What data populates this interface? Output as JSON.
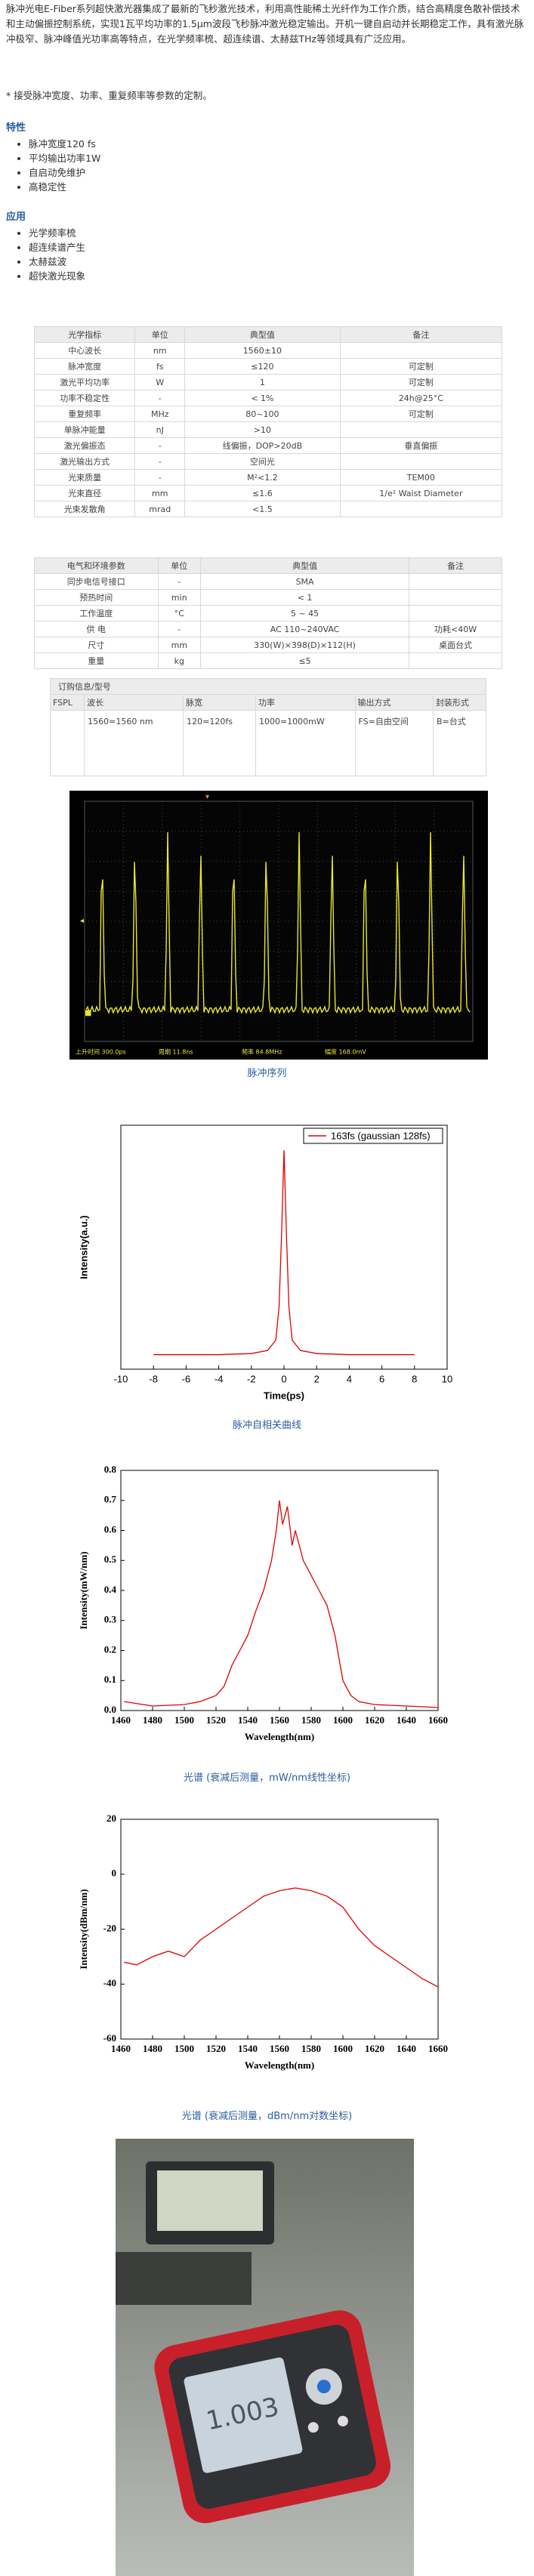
{
  "intro": "脉冲光电E-Fiber系列超快激光器集成了最新的飞秒激光技术，利用高性能稀土光纤作为工作介质，结合高精度色散补偿技术和主动偏振控制系统，实现1瓦平均功率的1.5μm波段飞秒脉冲激光稳定输出。开机一键自启动并长期稳定工作，具有激光脉冲极窄、脉冲峰值光功率高等特点，在光学频率梳、超连续谱、太赫兹THz等领域具有广泛应用。",
  "custom_note": "* 接受脉冲宽度、功率、重复频率等参数的定制。",
  "features": {
    "title": "特性",
    "items": [
      "脉冲宽度120 fs",
      "平均输出功率1W",
      "自启动免维护",
      "高稳定性"
    ]
  },
  "applications": {
    "title": "应用",
    "items": [
      "光学频率梳",
      "超连续谱产生",
      "太赫兹波",
      "超快激光现象"
    ]
  },
  "tables": [
    {
      "header": [
        "光学指标",
        "单位",
        "典型值",
        "备注"
      ],
      "rows": [
        [
          "中心波长",
          "nm",
          "1560±10",
          ""
        ],
        [
          "脉冲宽度",
          "fs",
          "≤120",
          "可定制"
        ],
        [
          "激光平均功率",
          "W",
          "1",
          "可定制"
        ],
        [
          "功率不稳定性",
          "-",
          "< 1%",
          "24h@25°C"
        ],
        [
          "重复频率",
          "MHz",
          "80~100",
          "可定制"
        ],
        [
          "单脉冲能量",
          "nJ",
          ">10",
          ""
        ],
        [
          "激光偏振态",
          "-",
          "线偏振，DOP>20dB",
          "垂直偏振"
        ],
        [
          "激光输出方式",
          "-",
          "空间光",
          ""
        ],
        [
          "光束质量",
          "-",
          "M²<1.2",
          "TEM00"
        ],
        [
          "光束直径",
          "mm",
          "≤1.6",
          "1/e² Waist Diameter"
        ],
        [
          "光束发散角",
          "mrad",
          "<1.5",
          ""
        ]
      ]
    },
    {
      "header": [
        "电气和环境参数",
        "单位",
        "典型值",
        "备注"
      ],
      "rows": [
        [
          "同步电信号接口",
          "-",
          "SMA",
          ""
        ],
        [
          "预热时间",
          "min",
          "< 1",
          ""
        ],
        [
          "工作温度",
          "°C",
          "5 ~ 45",
          ""
        ],
        [
          "供 电",
          "-",
          "AC 110~240VAC",
          "功耗<40W"
        ],
        [
          "尺寸",
          "mm",
          "330(W)×398(D)×112(H)",
          "桌面台式"
        ],
        [
          "重量",
          "kg",
          "≤5",
          ""
        ]
      ]
    },
    {
      "title": "订购信息/型号",
      "header": [
        "FSPL",
        "波长",
        "脉宽",
        "功率",
        "输出方式",
        "封装形式"
      ],
      "rows": [
        [
          "",
          "1560=1560 nm",
          "120=120fs",
          "1000=1000mW",
          "FS=自由空间",
          "B=台式"
        ]
      ]
    }
  ],
  "scope": {
    "status": [
      "上升时间 300.0ps",
      "周期 11.8ns",
      "频率 84.8MHz",
      "幅度 168.0mV"
    ],
    "caption": "脉冲序列"
  },
  "chart_data": [
    {
      "type": "line",
      "xlabel": "Time(ps)",
      "ylabel": "Intensity(a.u.)",
      "caption": "脉冲自相关曲线",
      "xlim": [
        -10,
        10
      ],
      "xticks": [
        -10,
        -8,
        -6,
        -4,
        -2,
        0,
        2,
        4,
        6,
        8,
        10
      ],
      "ylim": [
        -0.05,
        1.12
      ],
      "legend": "upper right",
      "x": [
        -8,
        -6,
        -4,
        -2,
        -1,
        -0.5,
        -0.3,
        -0.15,
        0,
        0.15,
        0.3,
        0.5,
        1,
        2,
        4,
        6,
        8
      ],
      "series": [
        {
          "name": "163fs (gaussian 128fs)",
          "color": "#e00000",
          "values": [
            0.02,
            0.02,
            0.02,
            0.025,
            0.04,
            0.09,
            0.25,
            0.6,
            1.0,
            0.6,
            0.25,
            0.09,
            0.04,
            0.025,
            0.02,
            0.02,
            0.02
          ]
        }
      ]
    },
    {
      "type": "line",
      "xlabel": "Wavelength(nm)",
      "ylabel": "Intensity(mW/nm)",
      "caption": "光谱 (衰减后测量，mW/nm线性坐标)",
      "xlim": [
        1460,
        1660
      ],
      "xticks": [
        1460,
        1480,
        1500,
        1520,
        1540,
        1560,
        1580,
        1600,
        1620,
        1640,
        1660
      ],
      "ylim": [
        0,
        0.8
      ],
      "yticks": [
        {
          "value": 0,
          "label": "0.0"
        },
        0.1,
        0.2,
        0.3,
        0.4,
        0.5,
        0.6,
        0.7,
        0.8
      ],
      "x": [
        1462,
        1480,
        1500,
        1510,
        1520,
        1525,
        1530,
        1535,
        1540,
        1545,
        1550,
        1555,
        1558,
        1560,
        1562,
        1565,
        1568,
        1570,
        1575,
        1580,
        1585,
        1590,
        1595,
        1600,
        1605,
        1610,
        1620,
        1640,
        1660
      ],
      "series": [
        {
          "color": "#e00000",
          "values": [
            0.03,
            0.015,
            0.02,
            0.03,
            0.05,
            0.08,
            0.15,
            0.2,
            0.25,
            0.33,
            0.4,
            0.5,
            0.6,
            0.7,
            0.62,
            0.68,
            0.55,
            0.6,
            0.5,
            0.45,
            0.4,
            0.35,
            0.25,
            0.1,
            0.05,
            0.03,
            0.02,
            0.015,
            0.01
          ]
        }
      ]
    },
    {
      "type": "line",
      "xlabel": "Wavelength(nm)",
      "ylabel": "Intensity(dBm/nm)",
      "caption": "光谱 (衰减后测量，dBm/nm对数坐标)",
      "xlim": [
        1460,
        1660
      ],
      "xticks": [
        1460,
        1480,
        1500,
        1520,
        1540,
        1560,
        1580,
        1600,
        1620,
        1640,
        1660
      ],
      "ylim": [
        -60,
        20
      ],
      "yticks": [
        -60,
        -40,
        -20,
        0,
        20
      ],
      "x": [
        1462,
        1470,
        1480,
        1490,
        1500,
        1510,
        1520,
        1530,
        1540,
        1550,
        1560,
        1570,
        1580,
        1590,
        1600,
        1610,
        1620,
        1630,
        1640,
        1650,
        1660
      ],
      "series": [
        {
          "color": "#e00000",
          "values": [
            -32,
            -33,
            -30,
            -28,
            -30,
            -24,
            -20,
            -16,
            -12,
            -8,
            -6,
            -5,
            -6,
            -8,
            -12,
            -20,
            -26,
            -30,
            -34,
            -38,
            -41
          ]
        }
      ]
    }
  ],
  "photo": {
    "reading": "1.003"
  }
}
